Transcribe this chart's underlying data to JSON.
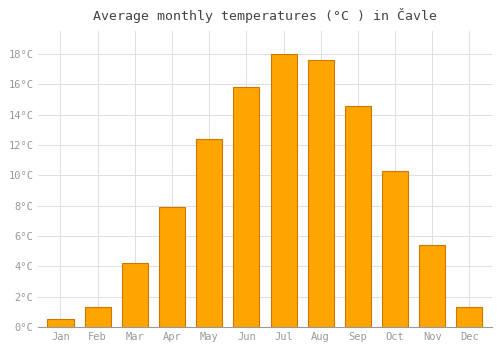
{
  "title": "Average monthly temperatures (°C ) in Čavle",
  "months": [
    "Jan",
    "Feb",
    "Mar",
    "Apr",
    "May",
    "Jun",
    "Jul",
    "Aug",
    "Sep",
    "Oct",
    "Nov",
    "Dec"
  ],
  "values": [
    0.5,
    1.3,
    4.2,
    7.9,
    12.4,
    15.8,
    18.0,
    17.6,
    14.6,
    10.3,
    5.4,
    1.3
  ],
  "bar_color": "#FFA500",
  "bar_edge_color": "#CC7700",
  "background_color": "#ffffff",
  "grid_color": "#e0e0e0",
  "ylim": [
    0,
    19.5
  ],
  "yticks": [
    0,
    2,
    4,
    6,
    8,
    10,
    12,
    14,
    16,
    18
  ],
  "title_fontsize": 9.5,
  "tick_fontsize": 7.5,
  "tick_color": "#999999",
  "bar_width": 0.7
}
